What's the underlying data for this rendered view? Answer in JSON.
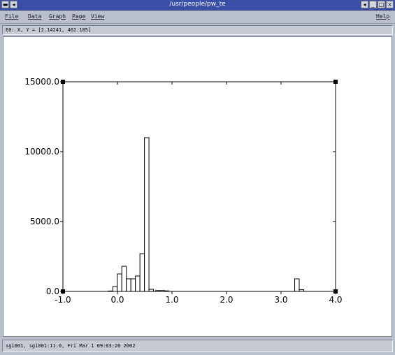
{
  "window": {
    "title": "/usr/people/pw_te"
  },
  "menu": {
    "file": "File",
    "data": "Data",
    "graph": "Graph",
    "page": "Page",
    "view": "View",
    "help": "Help"
  },
  "coord": "E0: X, Y = [2.14241, 462.185]",
  "status": "sgi001, sgi001:11.0, Fri Mar  1 09:03:20 2002",
  "chart_data": {
    "type": "bar",
    "xlim": [
      -1.0,
      4.0
    ],
    "ylim": [
      0,
      15000
    ],
    "xticks": [
      -1.0,
      0.0,
      1.0,
      2.0,
      3.0,
      4.0
    ],
    "xtick_labels": [
      "-1.0",
      "0.0",
      "1.0",
      "2.0",
      "3.0",
      "4.0"
    ],
    "yticks": [
      0,
      5000,
      10000,
      15000
    ],
    "ytick_labels": [
      "0.0",
      "5000.0",
      "10000.0",
      "15000.0"
    ],
    "bin_width": 0.083,
    "bins": [
      {
        "x": -0.17,
        "y": 30
      },
      {
        "x": -0.085,
        "y": 350
      },
      {
        "x": -0.003,
        "y": 1250
      },
      {
        "x": 0.08,
        "y": 1800
      },
      {
        "x": 0.163,
        "y": 900
      },
      {
        "x": 0.246,
        "y": 900
      },
      {
        "x": 0.329,
        "y": 1100
      },
      {
        "x": 0.412,
        "y": 2700
      },
      {
        "x": 0.495,
        "y": 11000
      },
      {
        "x": 0.578,
        "y": 150
      },
      {
        "x": 0.7,
        "y": 60
      },
      {
        "x": 0.78,
        "y": 60
      },
      {
        "x": 0.86,
        "y": 40
      },
      {
        "x": 3.25,
        "y": 900
      },
      {
        "x": 3.333,
        "y": 120
      }
    ],
    "grid": false
  }
}
